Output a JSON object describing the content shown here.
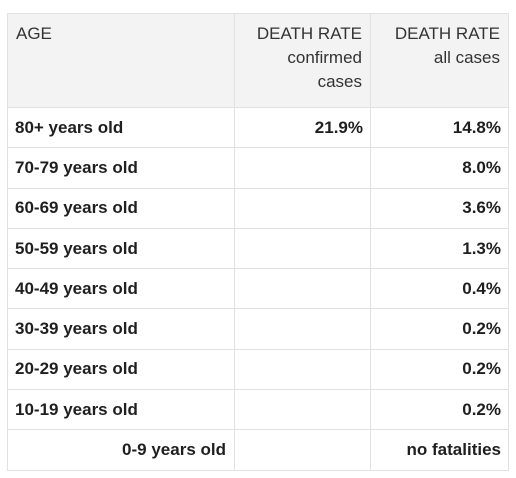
{
  "header": {
    "age": "AGE",
    "col2_title": "DEATH RATE",
    "col2_sub": "confirmed cases",
    "col3_title": "DEATH RATE",
    "col3_sub": "all cases"
  },
  "rows": [
    {
      "age": "80+ years old",
      "confirmed": "21.9%",
      "all": "14.8%"
    },
    {
      "age": "70-79 years old",
      "confirmed": "",
      "all": "8.0%"
    },
    {
      "age": "60-69 years old",
      "confirmed": "",
      "all": "3.6%"
    },
    {
      "age": "50-59 years old",
      "confirmed": "",
      "all": "1.3%"
    },
    {
      "age": "40-49 years old",
      "confirmed": "",
      "all": "0.4%"
    },
    {
      "age": "30-39 years old",
      "confirmed": "",
      "all": "0.2%"
    },
    {
      "age": "20-29 years old",
      "confirmed": "",
      "all": "0.2%"
    },
    {
      "age": "10-19 years old",
      "confirmed": "",
      "all": "0.2%"
    },
    {
      "age": "0-9 years old",
      "confirmed": "",
      "all": "no fatalities"
    }
  ]
}
